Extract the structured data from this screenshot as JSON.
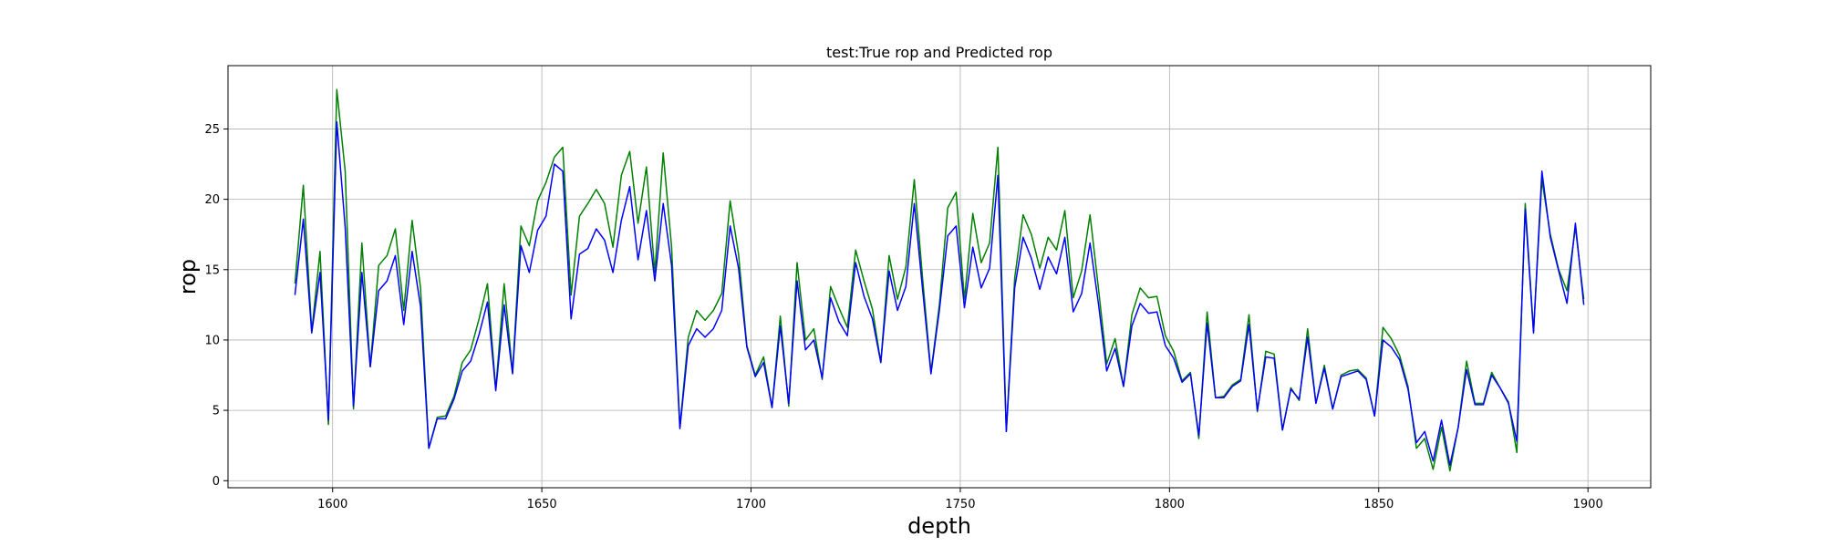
{
  "chart_data": {
    "type": "line",
    "title": "test:True rop and Predicted rop",
    "xlabel": "depth",
    "ylabel": "rop",
    "xlim": [
      1575,
      1915
    ],
    "ylim": [
      -0.5,
      29.5
    ],
    "xticks": [
      1600,
      1650,
      1700,
      1750,
      1800,
      1850,
      1900
    ],
    "yticks": [
      0,
      5,
      10,
      15,
      20,
      25
    ],
    "grid": true,
    "legend": "none",
    "x": [
      1591,
      1593,
      1595,
      1597,
      1599,
      1601,
      1603,
      1605,
      1607,
      1609,
      1611,
      1613,
      1615,
      1617,
      1619,
      1621,
      1623,
      1625,
      1627,
      1629,
      1631,
      1633,
      1635,
      1637,
      1639,
      1641,
      1643,
      1645,
      1647,
      1649,
      1651,
      1653,
      1655,
      1657,
      1659,
      1661,
      1663,
      1665,
      1667,
      1669,
      1671,
      1673,
      1675,
      1677,
      1679,
      1681,
      1683,
      1685,
      1687,
      1689,
      1691,
      1693,
      1695,
      1697,
      1699,
      1701,
      1703,
      1705,
      1707,
      1709,
      1711,
      1713,
      1715,
      1717,
      1719,
      1721,
      1723,
      1725,
      1727,
      1729,
      1731,
      1733,
      1735,
      1737,
      1739,
      1741,
      1743,
      1745,
      1747,
      1749,
      1751,
      1753,
      1755,
      1757,
      1759,
      1761,
      1763,
      1765,
      1767,
      1769,
      1771,
      1773,
      1775,
      1777,
      1779,
      1781,
      1783,
      1785,
      1787,
      1789,
      1791,
      1793,
      1795,
      1797,
      1799,
      1801,
      1803,
      1805,
      1807,
      1809,
      1811,
      1813,
      1815,
      1817,
      1819,
      1821,
      1823,
      1825,
      1827,
      1829,
      1831,
      1833,
      1835,
      1837,
      1839,
      1841,
      1843,
      1845,
      1847,
      1849,
      1851,
      1853,
      1855,
      1857,
      1859,
      1861,
      1863,
      1865,
      1867,
      1869,
      1871,
      1873,
      1875,
      1877,
      1879,
      1881,
      1883,
      1885,
      1887,
      1889,
      1891,
      1893,
      1895,
      1897,
      1899
    ],
    "series": [
      {
        "color": "#008000",
        "values": [
          14.0,
          21.0,
          10.6,
          16.3,
          4.0,
          27.8,
          22.0,
          5.1,
          16.9,
          8.1,
          15.3,
          16.0,
          17.9,
          12.1,
          18.5,
          13.7,
          2.3,
          4.5,
          4.6,
          6.0,
          8.4,
          9.3,
          11.5,
          14.0,
          6.5,
          14.0,
          7.7,
          18.1,
          16.7,
          19.9,
          21.2,
          23.0,
          23.7,
          13.2,
          18.8,
          19.7,
          20.7,
          19.7,
          16.6,
          21.7,
          23.4,
          18.3,
          22.3,
          14.8,
          23.3,
          16.6,
          3.8,
          10.2,
          12.1,
          11.4,
          12.1,
          13.3,
          19.9,
          16.1,
          9.6,
          7.5,
          8.8,
          5.2,
          11.7,
          5.3,
          15.5,
          10.0,
          10.8,
          7.2,
          13.8,
          12.3,
          10.9,
          16.4,
          14.2,
          12.2,
          8.4,
          16.0,
          12.9,
          15.2,
          21.4,
          14.4,
          7.7,
          12.5,
          19.4,
          20.5,
          12.9,
          19.0,
          15.5,
          16.9,
          23.7,
          3.5,
          14.4,
          18.9,
          17.5,
          15.1,
          17.3,
          16.4,
          19.2,
          13.0,
          14.9,
          18.9,
          13.7,
          8.3,
          10.1,
          6.7,
          11.8,
          13.7,
          13.0,
          13.1,
          10.3,
          9.2,
          7.1,
          7.7,
          3.0,
          12.0,
          5.9,
          6.0,
          6.8,
          7.2,
          11.8,
          4.9,
          9.2,
          9.0,
          3.6,
          6.6,
          5.7,
          10.8,
          5.5,
          8.2,
          5.1,
          7.5,
          7.8,
          7.9,
          7.3,
          4.6,
          10.9,
          10.1,
          8.9,
          6.7,
          2.3,
          3.0,
          0.8,
          3.8,
          0.7,
          3.8,
          8.5,
          5.5,
          5.5,
          7.7,
          6.6,
          5.6,
          2.0,
          19.7,
          10.6,
          21.4,
          17.5,
          15.0,
          13.5,
          18.0,
          12.9
        ]
      },
      {
        "color": "#0000ff",
        "values": [
          13.2,
          18.6,
          10.5,
          14.8,
          4.3,
          25.5,
          18.0,
          5.3,
          14.8,
          8.1,
          13.5,
          14.2,
          16.0,
          11.1,
          16.3,
          12.4,
          2.3,
          4.4,
          4.4,
          5.8,
          7.8,
          8.5,
          10.4,
          12.7,
          6.4,
          12.5,
          7.6,
          16.7,
          14.8,
          17.8,
          18.8,
          22.5,
          22.0,
          11.5,
          16.1,
          16.5,
          17.9,
          17.1,
          14.8,
          18.5,
          20.9,
          15.7,
          19.2,
          14.2,
          19.7,
          15.3,
          3.7,
          9.6,
          10.8,
          10.2,
          10.8,
          12.1,
          18.1,
          15.1,
          9.5,
          7.4,
          8.4,
          5.2,
          11.0,
          5.5,
          14.2,
          9.3,
          10.0,
          7.3,
          13.0,
          11.3,
          10.3,
          15.5,
          13.1,
          11.5,
          8.4,
          14.9,
          12.1,
          13.8,
          19.7,
          13.6,
          7.6,
          12.1,
          17.4,
          18.1,
          12.3,
          16.6,
          13.7,
          15.1,
          21.7,
          3.5,
          13.7,
          17.3,
          15.8,
          13.6,
          15.9,
          14.7,
          17.3,
          12.0,
          13.3,
          16.9,
          12.6,
          7.8,
          9.4,
          6.7,
          11.0,
          12.6,
          11.9,
          12.0,
          9.6,
          8.7,
          7.0,
          7.6,
          3.2,
          11.2,
          5.9,
          5.9,
          6.7,
          7.1,
          11.1,
          5.0,
          8.8,
          8.7,
          3.6,
          6.5,
          5.8,
          10.2,
          5.5,
          8.0,
          5.1,
          7.4,
          7.6,
          7.8,
          7.2,
          4.6,
          10.0,
          9.5,
          8.6,
          6.5,
          2.7,
          3.5,
          1.4,
          4.3,
          1.1,
          3.8,
          7.9,
          5.4,
          5.4,
          7.5,
          6.6,
          5.5,
          2.8,
          19.3,
          10.5,
          22.0,
          17.3,
          14.9,
          12.6,
          18.3,
          12.5
        ]
      }
    ]
  }
}
